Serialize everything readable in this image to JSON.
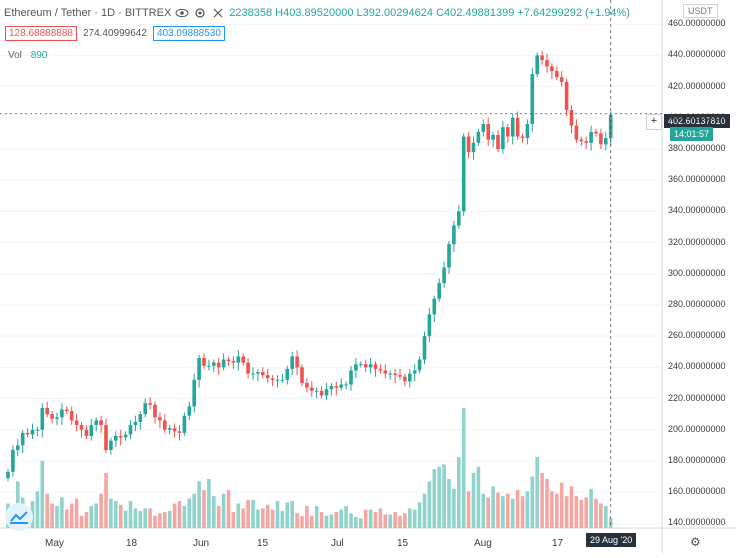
{
  "header": {
    "symbol": "Ethereum / Tether · 1D · BITTREX",
    "ohlc": "2238358 H403.89520000 L392.00294624 C402.49881399 +7.64299292 (+1.94%)",
    "indicator_low": "128.68888888",
    "indicator_mid": "274.40999642",
    "indicator_high": "403.09888530",
    "volume_label": "Vol",
    "volume_value": "890",
    "currency": "USDT"
  },
  "price_tag": "402.60137810",
  "time_tag": "14:01:57",
  "date_tag": "29 Aug '20",
  "colors": {
    "up": "#26a69a",
    "down": "#ef5350",
    "vol_up": "#8fd3cb",
    "vol_down": "#f4a6a3"
  },
  "chart_data": {
    "type": "candlestick",
    "title": "Ethereum / Tether · 1D · BITTREX",
    "yaxis_ticks": [
      "140.00000000",
      "160.00000000",
      "180.00000000",
      "200.00000000",
      "220.00000000",
      "240.00000000",
      "260.00000000",
      "280.00000000",
      "300.00000000",
      "320.00000000",
      "340.00000000",
      "360.00000000",
      "380.00000000",
      "400.00000000",
      "420.00000000",
      "440.00000000",
      "460.00000000"
    ],
    "ylim": [
      137,
      464
    ],
    "xaxis_ticks": [
      "May",
      "18",
      "Jun",
      "15",
      "Jul",
      "15",
      "Aug",
      "17"
    ],
    "grid": true,
    "series": [
      {
        "close": [
          173,
          187,
          190,
          198,
          197,
          200,
          200,
          214,
          210,
          207,
          208,
          213,
          212,
          206,
          203,
          200,
          196,
          203,
          206,
          203,
          187,
          193,
          196,
          195,
          197,
          203,
          205,
          210,
          217,
          216,
          208,
          206,
          200,
          201,
          199,
          198,
          209,
          215,
          232,
          246,
          241,
          241,
          243,
          240,
          245,
          244,
          243,
          247,
          243,
          236,
          236,
          237,
          235,
          233,
          232,
          232,
          232,
          239,
          247,
          240,
          230,
          227,
          225,
          225,
          222,
          226,
          228,
          227,
          229,
          229,
          238,
          242,
          242,
          240,
          242,
          239,
          238,
          236,
          236,
          235,
          234,
          231,
          236,
          238,
          245,
          260,
          274,
          284,
          294,
          304,
          319,
          331,
          340,
          388,
          378,
          384,
          391,
          396,
          386,
          389,
          380,
          394,
          388,
          400,
          388,
          387,
          396,
          428,
          440,
          437,
          433,
          430,
          426,
          423,
          405,
          395,
          386,
          385,
          384,
          391,
          390,
          383,
          387,
          402
        ],
        "volume": [
          20,
          18,
          38,
          25,
          15,
          22,
          30,
          55,
          28,
          20,
          18,
          25,
          15,
          20,
          24,
          10,
          13,
          18,
          20,
          28,
          45,
          24,
          22,
          19,
          14,
          22,
          16,
          14,
          16,
          16,
          10,
          12,
          13,
          14,
          20,
          22,
          18,
          24,
          28,
          38,
          31,
          40,
          26,
          18,
          28,
          31,
          13,
          20,
          16,
          23,
          23,
          15,
          16,
          19,
          15,
          22,
          14,
          21,
          22,
          12,
          10,
          18,
          10,
          18,
          13,
          10,
          11,
          13,
          15,
          18,
          12,
          9,
          8,
          15,
          15,
          13,
          16,
          11,
          11,
          13,
          10,
          12,
          16,
          15,
          21,
          28,
          38,
          48,
          50,
          52,
          40,
          32,
          58,
          98,
          30,
          45,
          50,
          28,
          25,
          34,
          29,
          26,
          28,
          24,
          31,
          26,
          30,
          42,
          58,
          45,
          40,
          30,
          28,
          37,
          26,
          34,
          26,
          23,
          25,
          32,
          24,
          20,
          18,
          8
        ]
      }
    ]
  }
}
